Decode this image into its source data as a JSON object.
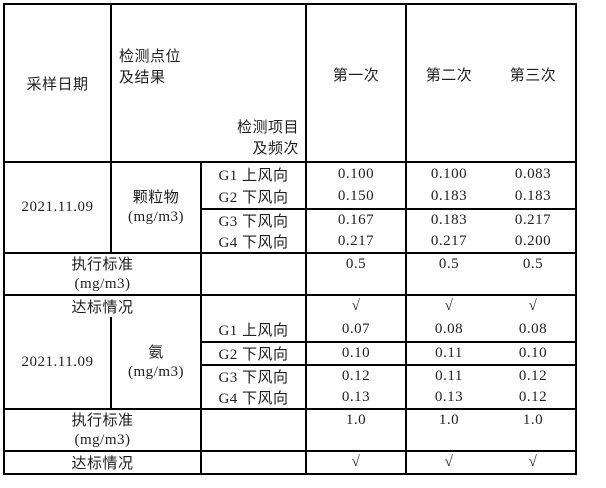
{
  "header": {
    "sampling_date": "采样日期",
    "point_result_line1": "检测点位",
    "point_result_line2": "及结果",
    "item_freq_line1": "检测项目",
    "item_freq_line2": "及频次",
    "run1": "第一次",
    "run2": "第二次",
    "run3": "第三次"
  },
  "sections": [
    {
      "date": "2021.11.09",
      "item_line1": "颗粒物",
      "item_line2": "(mg/m3)",
      "rows": [
        {
          "point": "G1 上风向",
          "v": [
            "0.100",
            "0.100",
            "0.083"
          ]
        },
        {
          "point": "G2 下风向",
          "v": [
            "0.150",
            "0.183",
            "0.183"
          ]
        },
        {
          "point": "G3 下风向",
          "v": [
            "0.167",
            "0.183",
            "0.217"
          ]
        },
        {
          "point": "G4 下风向",
          "v": [
            "0.217",
            "0.217",
            "0.200"
          ]
        }
      ],
      "standard_line1": "执行标准",
      "standard_line2": "(mg/m3)",
      "standard_values": [
        "0.5",
        "0.5",
        "0.5"
      ],
      "compliance_label": "达标情况",
      "compliance_values": [
        "√",
        "√",
        "√"
      ]
    },
    {
      "date": "2021.11.09",
      "item_line1": "氨",
      "item_line2": "(mg/m3)",
      "rows": [
        {
          "point": "G1 上风向",
          "v": [
            "0.07",
            "0.08",
            "0.08"
          ]
        },
        {
          "point": "G2 下风向",
          "v": [
            "0.10",
            "0.11",
            "0.10"
          ]
        },
        {
          "point": "G3 下风向",
          "v": [
            "0.12",
            "0.11",
            "0.12"
          ]
        },
        {
          "point": "G4 下风向",
          "v": [
            "0.13",
            "0.13",
            "0.12"
          ]
        }
      ],
      "standard_line1": "执行标准",
      "standard_line2": "(mg/m3)",
      "standard_values": [
        "1.0",
        "1.0",
        "1.0"
      ],
      "compliance_label": "达标情况",
      "compliance_values": [
        "√",
        "√",
        "√"
      ]
    }
  ],
  "colors": {
    "border": "#000000",
    "text": "#1f1f1f",
    "background": "#ffffff"
  }
}
